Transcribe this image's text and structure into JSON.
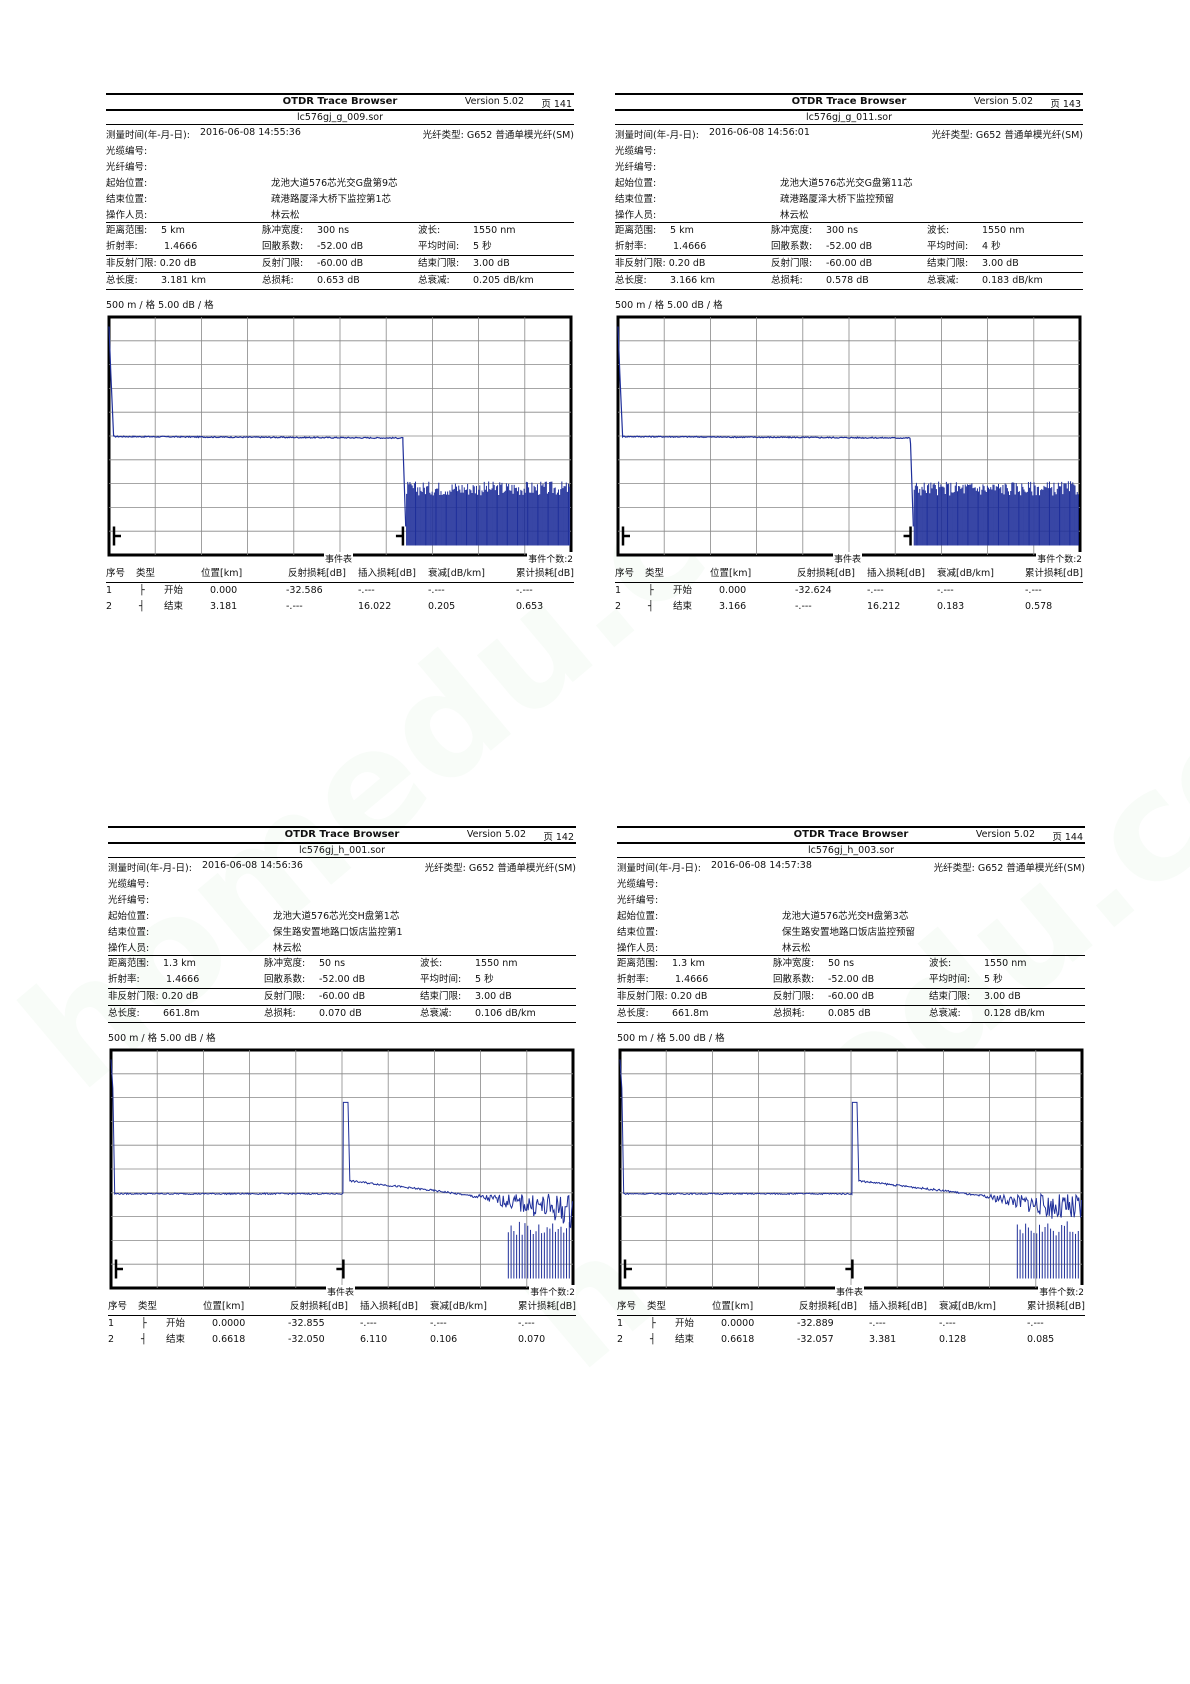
{
  "reports": [
    {
      "app_title": "OTDR Trace Browser",
      "version": "Version 5.02",
      "page": "页 141",
      "file": "lc576gj_g_009.sor",
      "measure_time_label": "测量时间(年-月-日):",
      "measure_time": "2016-06-08  14:55:36",
      "fiber_type_label": "光纤类型:",
      "fiber_type": "G652 普通单模光纤(SM)",
      "cable_id_label": "光缆编号:",
      "fiber_id_label": "光纤编号:",
      "start_label": "起始位置:",
      "start": "龙池大道576芯光交G盘第9芯",
      "end_label": "结束位置:",
      "end": "疏港路厦泽大桥下监控第1芯",
      "operator_label": "操作人员:",
      "operator": "林云松",
      "range_label": "距离范围:",
      "range": "5 km",
      "pulse_label": "脉冲宽度:",
      "pulse": "300 ns",
      "wave_label": "波长:",
      "wave": "1550 nm",
      "index_label": "折射率:",
      "index": "1.4666",
      "backscatter_label": "回散系数:",
      "backscatter": "-52.00 dB",
      "avg_label": "平均时间:",
      "avg": "5 秒",
      "nonrefl_label": "非反射门限:",
      "nonrefl": "0.20 dB",
      "refl_label": "反射门限:",
      "refl": "-60.00 dB",
      "endthr_label": "结束门限:",
      "endthr": "3.00 dB",
      "length_label": "总长度:",
      "length": "3.181 km",
      "loss_label": "总损耗:",
      "loss": "0.653 dB",
      "atten_label": "总衰减:",
      "atten": "0.205 dB/km",
      "scale": "500 m / 格    5.00 dB / 格",
      "event_table_label": "事件表",
      "event_count": "事件个数:2",
      "evt_headers": [
        "序号",
        "类型",
        "位置[km]",
        "反射损耗[dB]",
        "插入损耗[dB]",
        "衰减[dB/km]",
        "累计损耗[dB]"
      ],
      "events": [
        {
          "no": "1",
          "icon": "├",
          "type": "开始",
          "pos": "0.000",
          "refl": "-32.586",
          "ins": "-.---",
          "att": "-.---",
          "cum": "-.---"
        },
        {
          "no": "2",
          "icon": "┤",
          "type": "结束",
          "pos": "3.181",
          "refl": "-.---",
          "ins": "16.022",
          "att": "0.205",
          "cum": "0.653"
        }
      ],
      "chart": {
        "kind": "cut",
        "end_km": 3.181,
        "level_db": -25.1,
        "noise_db": -37.5
      }
    },
    {
      "app_title": "OTDR Trace Browser",
      "version": "Version 5.02",
      "page": "页 143",
      "file": "lc576gj_g_011.sor",
      "measure_time_label": "测量时间(年-月-日):",
      "measure_time": "2016-06-08  14:56:01",
      "fiber_type_label": "光纤类型:",
      "fiber_type": "G652 普通单模光纤(SM)",
      "cable_id_label": "光缆编号:",
      "fiber_id_label": "光纤编号:",
      "start_label": "起始位置:",
      "start": "龙池大道576芯光交G盘第11芯",
      "end_label": "结束位置:",
      "end": "疏港路厦泽大桥下监控预留",
      "operator_label": "操作人员:",
      "operator": "林云松",
      "range_label": "距离范围:",
      "range": "5 km",
      "pulse_label": "脉冲宽度:",
      "pulse": "300 ns",
      "wave_label": "波长:",
      "wave": "1550 nm",
      "index_label": "折射率:",
      "index": "1.4666",
      "backscatter_label": "回散系数:",
      "backscatter": "-52.00 dB",
      "avg_label": "平均时间:",
      "avg": "4 秒",
      "nonrefl_label": "非反射门限:",
      "nonrefl": "0.20 dB",
      "refl_label": "反射门限:",
      "refl": "-60.00 dB",
      "endthr_label": "结束门限:",
      "endthr": "3.00 dB",
      "length_label": "总长度:",
      "length": "3.166 km",
      "loss_label": "总损耗:",
      "loss": "0.578 dB",
      "atten_label": "总衰减:",
      "atten": "0.183 dB/km",
      "scale": "500 m / 格    5.00 dB / 格",
      "event_table_label": "事件表",
      "event_count": "事件个数:2",
      "evt_headers": [
        "序号",
        "类型",
        "位置[km]",
        "反射损耗[dB]",
        "插入损耗[dB]",
        "衰减[dB/km]",
        "累计损耗[dB]"
      ],
      "events": [
        {
          "no": "1",
          "icon": "├",
          "type": "开始",
          "pos": "0.000",
          "refl": "-32.624",
          "ins": "-.---",
          "att": "-.---",
          "cum": "-.---"
        },
        {
          "no": "2",
          "icon": "┤",
          "type": "结束",
          "pos": "3.166",
          "refl": "-.---",
          "ins": "16.212",
          "att": "0.183",
          "cum": "0.578"
        }
      ],
      "chart": {
        "kind": "cut",
        "end_km": 3.166,
        "level_db": -25.1,
        "noise_db": -37.5
      }
    },
    {
      "app_title": "OTDR Trace Browser",
      "version": "Version 5.02",
      "page": "页 142",
      "file": "lc576gj_h_001.sor",
      "measure_time_label": "测量时间(年-月-日):",
      "measure_time": "2016-06-08  14:56:36",
      "fiber_type_label": "光纤类型:",
      "fiber_type": "G652 普通单模光纤(SM)",
      "cable_id_label": "光缆编号:",
      "fiber_id_label": "光纤编号:",
      "start_label": "起始位置:",
      "start": "龙池大道576芯光交H盘第1芯",
      "end_label": "结束位置:",
      "end": "保生路安置地路口饭店监控第1",
      "operator_label": "操作人员:",
      "operator": "林云松",
      "range_label": "距离范围:",
      "range": "1.3 km",
      "pulse_label": "脉冲宽度:",
      "pulse": "50 ns",
      "wave_label": "波长:",
      "wave": "1550 nm",
      "index_label": "折射率:",
      "index": "1.4666",
      "backscatter_label": "回散系数:",
      "backscatter": "-52.00 dB",
      "avg_label": "平均时间:",
      "avg": "5 秒",
      "nonrefl_label": "非反射门限:",
      "nonrefl": "0.20 dB",
      "refl_label": "反射门限:",
      "refl": "-60.00 dB",
      "endthr_label": "结束门限:",
      "endthr": "3.00 dB",
      "length_label": "总长度:",
      "length": "661.8m",
      "loss_label": "总损耗:",
      "loss": "0.070 dB",
      "atten_label": "总衰减:",
      "atten": "0.106 dB/km",
      "scale": "500 m / 格    5.00 dB / 格",
      "event_table_label": "事件表",
      "event_count": "事件个数:2",
      "evt_headers": [
        "序号",
        "类型",
        "位置[km]",
        "反射损耗[dB]",
        "插入损耗[dB]",
        "衰减[dB/km]",
        "累计损耗[dB]"
      ],
      "events": [
        {
          "no": "1",
          "icon": "├",
          "type": "开始",
          "pos": "0.0000",
          "refl": "-32.855",
          "ins": "-.---",
          "att": "-.---",
          "cum": "-.---"
        },
        {
          "no": "2",
          "icon": "┤",
          "type": "结束",
          "pos": "0.6618",
          "refl": "-32.050",
          "ins": "6.110",
          "att": "0.106",
          "cum": "0.070"
        }
      ],
      "chart": {
        "kind": "reflect",
        "end_km": 0.6618,
        "level_db": -30.2
      }
    },
    {
      "app_title": "OTDR Trace Browser",
      "version": "Version 5.02",
      "page": "页 144",
      "file": "lc576gj_h_003.sor",
      "measure_time_label": "测量时间(年-月-日):",
      "measure_time": "2016-06-08  14:57:38",
      "fiber_type_label": "光纤类型:",
      "fiber_type": "G652 普通单模光纤(SM)",
      "cable_id_label": "光缆编号:",
      "fiber_id_label": "光纤编号:",
      "start_label": "起始位置:",
      "start": "龙池大道576芯光交H盘第3芯",
      "end_label": "结束位置:",
      "end": "保生路安置地路口饭店监控预留",
      "operator_label": "操作人员:",
      "operator": "林云松",
      "range_label": "距离范围:",
      "range": "1.3 km",
      "pulse_label": "脉冲宽度:",
      "pulse": "50 ns",
      "wave_label": "波长:",
      "wave": "1550 nm",
      "index_label": "折射率:",
      "index": "1.4666",
      "backscatter_label": "回散系数:",
      "backscatter": "-52.00 dB",
      "avg_label": "平均时间:",
      "avg": "5 秒",
      "nonrefl_label": "非反射门限:",
      "nonrefl": "0.20 dB",
      "refl_label": "反射门限:",
      "refl": "-60.00 dB",
      "endthr_label": "结束门限:",
      "endthr": "3.00 dB",
      "length_label": "总长度:",
      "length": "661.8m",
      "loss_label": "总损耗:",
      "loss": "0.085 dB",
      "atten_label": "总衰减:",
      "atten": "0.128 dB/km",
      "scale": "500 m / 格    5.00 dB / 格",
      "event_table_label": "事件表",
      "event_count": "事件个数:2",
      "evt_headers": [
        "序号",
        "类型",
        "位置[km]",
        "反射损耗[dB]",
        "插入损耗[dB]",
        "衰减[dB/km]",
        "累计损耗[dB]"
      ],
      "events": [
        {
          "no": "1",
          "icon": "├",
          "type": "开始",
          "pos": "0.0000",
          "refl": "-32.889",
          "ins": "-.---",
          "att": "-.---",
          "cum": "-.---"
        },
        {
          "no": "2",
          "icon": "┤",
          "type": "结束",
          "pos": "0.6618",
          "refl": "-32.057",
          "ins": "3.381",
          "att": "0.128",
          "cum": "0.085"
        }
      ],
      "chart": {
        "kind": "reflect",
        "end_km": 0.6618,
        "level_db": -30.2
      }
    }
  ],
  "trace_color": "#1f2f9a",
  "watermark": "homedu.com"
}
